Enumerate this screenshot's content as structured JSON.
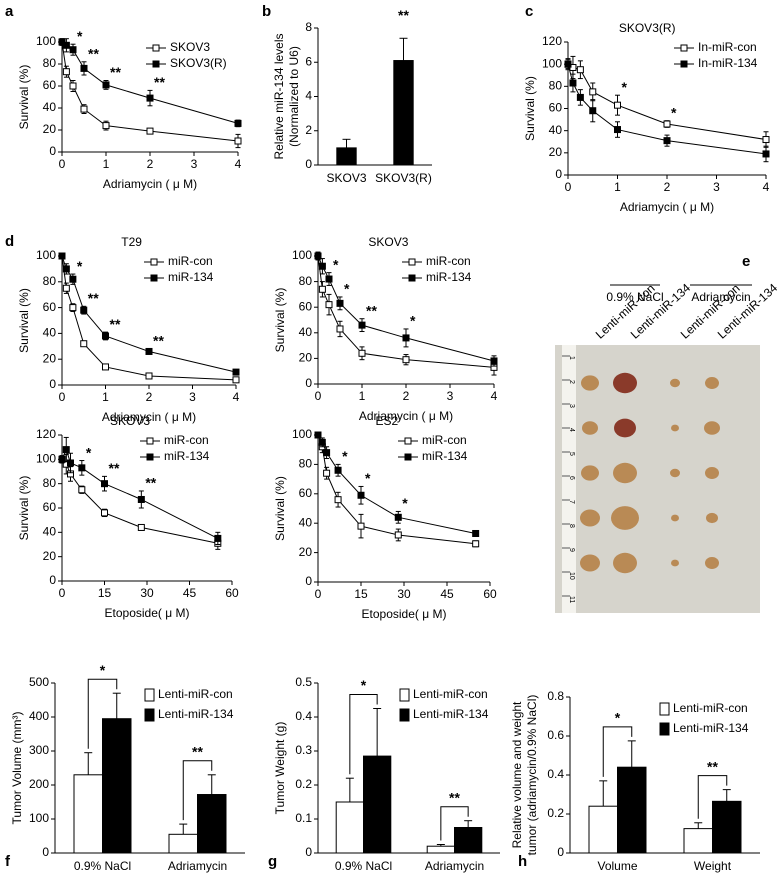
{
  "chart_data": [
    {
      "type": "line",
      "panel": "a",
      "xlabel": "Adriamycin ( μ M)",
      "ylabel": [
        "Survival (%)"
      ],
      "x": [
        0,
        0.1,
        0.25,
        0.5,
        1,
        2,
        4
      ],
      "xlim": [
        0,
        4
      ],
      "xticks": [
        0,
        1,
        2,
        3,
        4
      ],
      "ylim": [
        0,
        100
      ],
      "yticks": [
        0,
        20,
        40,
        60,
        80,
        100
      ],
      "series": [
        {
          "name": "SKOV3",
          "marker": "open-square",
          "color": "#000000",
          "values": [
            100,
            73,
            60,
            39,
            24,
            19,
            10
          ],
          "errors": [
            3,
            5,
            5,
            4,
            4,
            2,
            6
          ]
        },
        {
          "name": "SKOV3(R)",
          "marker": "filled-square",
          "color": "#000000",
          "values": [
            100,
            97,
            93,
            76,
            61,
            49,
            26
          ],
          "errors": [
            3,
            6,
            5,
            6,
            4,
            7,
            3
          ]
        }
      ],
      "annotations": [
        {
          "text": "*",
          "x": 0.25
        },
        {
          "text": "**",
          "x": 0.5
        },
        {
          "text": "**",
          "x": 1
        },
        {
          "text": "**",
          "x": 2
        }
      ],
      "legend": "upper right"
    },
    {
      "type": "bar",
      "panel": "b",
      "ylabel": [
        "Relative miR-134 levels",
        "(Normalized to U6)"
      ],
      "categories": [
        "SKOV3",
        "SKOV3(R)"
      ],
      "values": [
        1.0,
        6.1
      ],
      "errors": [
        0.5,
        1.3
      ],
      "color": "#000000",
      "ylim": [
        0,
        8
      ],
      "yticks": [
        0,
        2,
        4,
        6,
        8
      ],
      "annotations": [
        {
          "text": "**",
          "at": 1
        }
      ]
    },
    {
      "type": "line",
      "panel": "c",
      "title": "SKOV3(R)",
      "xlabel": "Adriamycin ( μ M)",
      "ylabel": [
        "Survival (%)"
      ],
      "x": [
        0,
        0.1,
        0.25,
        0.5,
        1,
        2,
        4
      ],
      "xlim": [
        0,
        4
      ],
      "xticks": [
        0,
        1,
        2,
        3,
        4
      ],
      "ylim": [
        0,
        120
      ],
      "yticks": [
        0,
        20,
        40,
        60,
        80,
        100,
        120
      ],
      "series": [
        {
          "name": "In-miR-con",
          "marker": "open-square",
          "color": "#000000",
          "values": [
            100,
            97,
            95,
            75,
            63,
            46,
            32
          ],
          "errors": [
            5,
            10,
            8,
            8,
            9,
            3,
            7
          ]
        },
        {
          "name": "In-miR-134",
          "marker": "filled-square",
          "color": "#000000",
          "values": [
            100,
            83,
            70,
            58,
            41,
            31,
            19
          ],
          "errors": [
            4,
            8,
            7,
            10,
            7,
            5,
            7
          ]
        }
      ],
      "annotations": [
        {
          "text": "*",
          "x": 1
        },
        {
          "text": "*",
          "x": 2
        }
      ],
      "legend": "upper right"
    },
    {
      "type": "line",
      "panel": "d",
      "title": "T29",
      "xlabel": "Adriamycin ( μ M)",
      "ylabel": [
        "Survival (%)"
      ],
      "x": [
        0,
        0.1,
        0.25,
        0.5,
        1,
        2,
        4
      ],
      "xlim": [
        0,
        4
      ],
      "xticks": [
        0,
        1,
        2,
        3,
        4
      ],
      "ylim": [
        0,
        100
      ],
      "yticks": [
        0,
        20,
        40,
        60,
        80,
        100
      ],
      "series": [
        {
          "name": "miR-con",
          "marker": "open-square",
          "color": "#000000",
          "values": [
            100,
            75,
            60,
            32,
            14,
            7,
            4
          ],
          "errors": [
            2,
            4,
            3,
            2,
            2,
            1,
            1
          ]
        },
        {
          "name": "miR-134",
          "marker": "filled-square",
          "color": "#000000",
          "values": [
            100,
            90,
            82,
            58,
            38,
            26,
            10
          ],
          "errors": [
            2,
            4,
            4,
            3,
            3,
            2,
            2
          ]
        }
      ],
      "annotations": [
        {
          "text": "*",
          "x": 0.25
        },
        {
          "text": "**",
          "x": 0.5
        },
        {
          "text": "**",
          "x": 1
        },
        {
          "text": "**",
          "x": 2
        }
      ],
      "legend": "upper right"
    },
    {
      "type": "line",
      "title": "SKOV3",
      "xlabel": "Adriamycin ( μ M)",
      "ylabel": [
        "Survival (%)"
      ],
      "x": [
        0,
        0.1,
        0.25,
        0.5,
        1,
        2,
        4
      ],
      "xlim": [
        0,
        4
      ],
      "xticks": [
        0,
        1,
        2,
        3,
        4
      ],
      "ylim": [
        0,
        100
      ],
      "yticks": [
        0,
        20,
        40,
        60,
        80,
        100
      ],
      "series": [
        {
          "name": "miR-con",
          "marker": "open-square",
          "color": "#000000",
          "values": [
            100,
            74,
            62,
            43,
            24,
            19,
            13
          ],
          "errors": [
            3,
            6,
            8,
            6,
            5,
            4,
            6
          ]
        },
        {
          "name": "miR-134",
          "marker": "filled-square",
          "color": "#000000",
          "values": [
            100,
            92,
            82,
            63,
            46,
            36,
            18
          ],
          "errors": [
            3,
            6,
            5,
            5,
            5,
            7,
            4
          ]
        }
      ],
      "annotations": [
        {
          "text": "*",
          "x": 0.25
        },
        {
          "text": "*",
          "x": 0.5
        },
        {
          "text": "**",
          "x": 1
        },
        {
          "text": "*",
          "x": 2
        }
      ],
      "legend": "upper right"
    },
    {
      "type": "line",
      "title": "SKOV3",
      "xlabel": "Etoposide( μ M)",
      "ylabel": [
        "Survival (%)"
      ],
      "x": [
        0,
        1.5,
        3,
        7,
        15,
        28,
        55
      ],
      "xlim": [
        0,
        60
      ],
      "xticks": [
        0,
        15,
        30,
        45,
        60
      ],
      "ylim": [
        0,
        120
      ],
      "yticks": [
        0,
        20,
        40,
        60,
        80,
        100,
        120
      ],
      "series": [
        {
          "name": "miR-con",
          "marker": "open-square",
          "color": "#000000",
          "values": [
            100,
            96,
            88,
            75,
            56,
            44,
            31
          ],
          "errors": [
            3,
            8,
            6,
            3,
            3,
            2,
            5
          ]
        },
        {
          "name": "miR-134",
          "marker": "filled-square",
          "color": "#000000",
          "values": [
            100,
            108,
            97,
            93,
            80,
            67,
            35
          ],
          "errors": [
            3,
            10,
            8,
            6,
            6,
            7,
            5
          ]
        }
      ],
      "annotations": [
        {
          "text": "*",
          "x": 7
        },
        {
          "text": "**",
          "x": 15
        },
        {
          "text": "**",
          "x": 28
        }
      ],
      "legend": "upper right"
    },
    {
      "type": "line",
      "title": "ES2",
      "xlabel": "Etoposide( μ M)",
      "ylabel": [
        "Survival (%)"
      ],
      "x": [
        0,
        1.5,
        3,
        7,
        15,
        28,
        55
      ],
      "xlim": [
        0,
        60
      ],
      "xticks": [
        0,
        15,
        30,
        45,
        60
      ],
      "ylim": [
        0,
        100
      ],
      "yticks": [
        0,
        20,
        40,
        60,
        80,
        100
      ],
      "series": [
        {
          "name": "miR-con",
          "marker": "open-square",
          "color": "#000000",
          "values": [
            100,
            92,
            74,
            56,
            38,
            32,
            26
          ],
          "errors": [
            2,
            4,
            4,
            5,
            8,
            4,
            2
          ]
        },
        {
          "name": "miR-134",
          "marker": "filled-square",
          "color": "#000000",
          "values": [
            100,
            95,
            88,
            76,
            59,
            44,
            33
          ],
          "errors": [
            2,
            3,
            4,
            4,
            6,
            4,
            2
          ]
        }
      ],
      "annotations": [
        {
          "text": "*",
          "x": 7
        },
        {
          "text": "*",
          "x": 15
        },
        {
          "text": "*",
          "x": 28
        }
      ],
      "legend": "upper right"
    },
    {
      "type": "bar",
      "panel": "f",
      "ylabel": [
        "Tumor Volume (mm³)"
      ],
      "categories": [
        "0.9% NaCl",
        "Adriamycin"
      ],
      "series": [
        {
          "name": "Lenti-miR-con",
          "color": "#ffffff",
          "values": [
            230,
            55
          ],
          "errors": [
            65,
            30
          ]
        },
        {
          "name": "Lenti-miR-134",
          "color": "#000000",
          "values": [
            395,
            172
          ],
          "errors": [
            75,
            58
          ]
        }
      ],
      "ylim": [
        0,
        500
      ],
      "yticks": [
        0,
        100,
        200,
        300,
        400,
        500
      ],
      "annotations": [
        {
          "text": "*",
          "at": 0
        },
        {
          "text": "**",
          "at": 1
        }
      ],
      "bracket": true,
      "legend": "upper right"
    },
    {
      "type": "bar",
      "panel": "g",
      "ylabel": [
        "Tumor Weight (g)"
      ],
      "categories": [
        "0.9% NaCl",
        "Adriamycin"
      ],
      "series": [
        {
          "name": "Lenti-miR-con",
          "color": "#ffffff",
          "values": [
            0.15,
            0.02
          ],
          "errors": [
            0.07,
            0.005
          ]
        },
        {
          "name": "Lenti-miR-134",
          "color": "#000000",
          "values": [
            0.285,
            0.075
          ],
          "errors": [
            0.14,
            0.02
          ]
        }
      ],
      "ylim": [
        0,
        0.5
      ],
      "yticks": [
        0,
        0.1,
        0.2,
        0.3,
        0.4,
        0.5
      ],
      "annotations": [
        {
          "text": "*",
          "at": 0
        },
        {
          "text": "**",
          "at": 1
        }
      ],
      "bracket": true,
      "legend": "upper right"
    },
    {
      "type": "bar",
      "panel": "h",
      "ylabel": [
        "Relative volume and weight",
        "tumor (adriamycin/0.9% NaCl)"
      ],
      "categories": [
        "Volume",
        "Weight"
      ],
      "series": [
        {
          "name": "Lenti-miR-con",
          "color": "#ffffff",
          "values": [
            0.24,
            0.125
          ],
          "errors": [
            0.13,
            0.03
          ]
        },
        {
          "name": "Lenti-miR-134",
          "color": "#000000",
          "values": [
            0.44,
            0.265
          ],
          "errors": [
            0.135,
            0.06
          ]
        }
      ],
      "ylim": [
        0,
        0.8
      ],
      "yticks": [
        0,
        0.2,
        0.4,
        0.6,
        0.8
      ],
      "annotations": [
        {
          "text": "*",
          "at": 0
        },
        {
          "text": "**",
          "at": 1
        }
      ],
      "bracket": true,
      "legend": "upper right"
    }
  ],
  "photo": {
    "panel": "e",
    "groups": [
      "0.9% NaCl",
      "Adriamycin"
    ],
    "columns": [
      "Lenti-miR-con",
      "Lenti-miR-134",
      "Lenti-miR-con",
      "Lenti-miR-134"
    ],
    "ruler_marks": [
      1,
      2,
      3,
      4,
      5,
      6,
      7,
      8,
      9,
      10,
      11
    ]
  }
}
